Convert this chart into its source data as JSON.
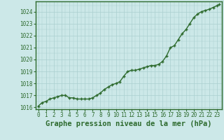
{
  "title": "Graphe pression niveau de la mer (hPa)",
  "x_values": [
    0,
    0.5,
    1,
    1.5,
    2,
    2.5,
    3,
    3.5,
    4,
    4.5,
    5,
    5.5,
    6,
    6.5,
    7,
    7.5,
    8,
    8.5,
    9,
    9.5,
    10,
    10.5,
    11,
    11.5,
    12,
    12.5,
    13,
    13.5,
    14,
    14.5,
    15,
    15.5,
    16,
    16.5,
    17,
    17.5,
    18,
    18.5,
    19,
    19.5,
    20,
    20.5,
    21,
    21.5,
    22,
    22.5,
    23,
    23.3
  ],
  "y_values": [
    1016.1,
    1016.4,
    1016.5,
    1016.7,
    1016.8,
    1016.9,
    1017.0,
    1017.0,
    1016.8,
    1016.8,
    1016.7,
    1016.7,
    1016.7,
    1016.7,
    1016.8,
    1017.0,
    1017.2,
    1017.5,
    1017.7,
    1017.9,
    1018.0,
    1018.15,
    1018.6,
    1019.0,
    1019.1,
    1019.1,
    1019.2,
    1019.3,
    1019.4,
    1019.5,
    1019.5,
    1019.6,
    1019.85,
    1020.3,
    1021.0,
    1021.15,
    1021.65,
    1022.15,
    1022.5,
    1023.0,
    1023.5,
    1023.8,
    1024.0,
    1024.1,
    1024.2,
    1024.35,
    1024.5,
    1024.6
  ],
  "line_color": "#2d6a2d",
  "marker_color": "#2d6a2d",
  "bg_color": "#cce8e8",
  "grid_color": "#aacfcf",
  "axis_color": "#2d6a2d",
  "title_color": "#2d6a2d",
  "xlim": [
    -0.3,
    23.6
  ],
  "ylim": [
    1015.85,
    1024.85
  ],
  "yticks": [
    1016,
    1017,
    1018,
    1019,
    1020,
    1021,
    1022,
    1023,
    1024
  ],
  "xticks": [
    0,
    1,
    2,
    3,
    4,
    5,
    6,
    7,
    8,
    9,
    10,
    11,
    12,
    13,
    14,
    15,
    16,
    17,
    18,
    19,
    20,
    21,
    22,
    23
  ],
  "title_fontsize": 7.5,
  "tick_fontsize": 5.5,
  "line_width": 1.0,
  "marker_size": 3.5
}
